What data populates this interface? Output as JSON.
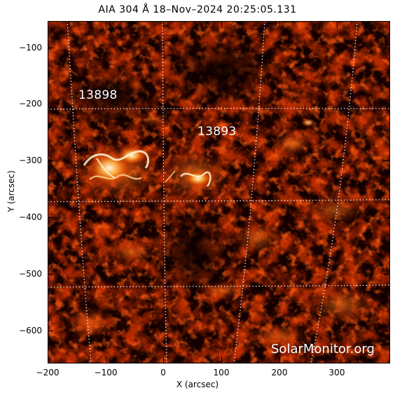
{
  "title": "AIA 304 Å 18–Nov–2024 20:25:05.131",
  "x_axis": {
    "label": "X (arcsec)",
    "tick_labels": [
      "−200",
      "−100",
      "0",
      "100",
      "200",
      "300"
    ],
    "range": [
      -200,
      390
    ]
  },
  "y_axis": {
    "label": "Y (arcsec)",
    "tick_labels": [
      "−100",
      "−200",
      "−300",
      "−400",
      "−500",
      "−600"
    ],
    "range": [
      -655,
      -50
    ]
  },
  "active_regions": [
    {
      "number": "13898",
      "x": -148,
      "y": -206
    },
    {
      "number": "13893",
      "x": 62,
      "y": -240
    }
  ],
  "watermark": "SolarMonitor.org",
  "colors": {
    "background": "#140000",
    "chromosphere_dark": "#5a0a00",
    "chromosphere_mid": "#b52a00",
    "chromosphere_bright": "#ff8c1a",
    "flare_white": "#fff8e6",
    "grid": "#ffffff"
  }
}
